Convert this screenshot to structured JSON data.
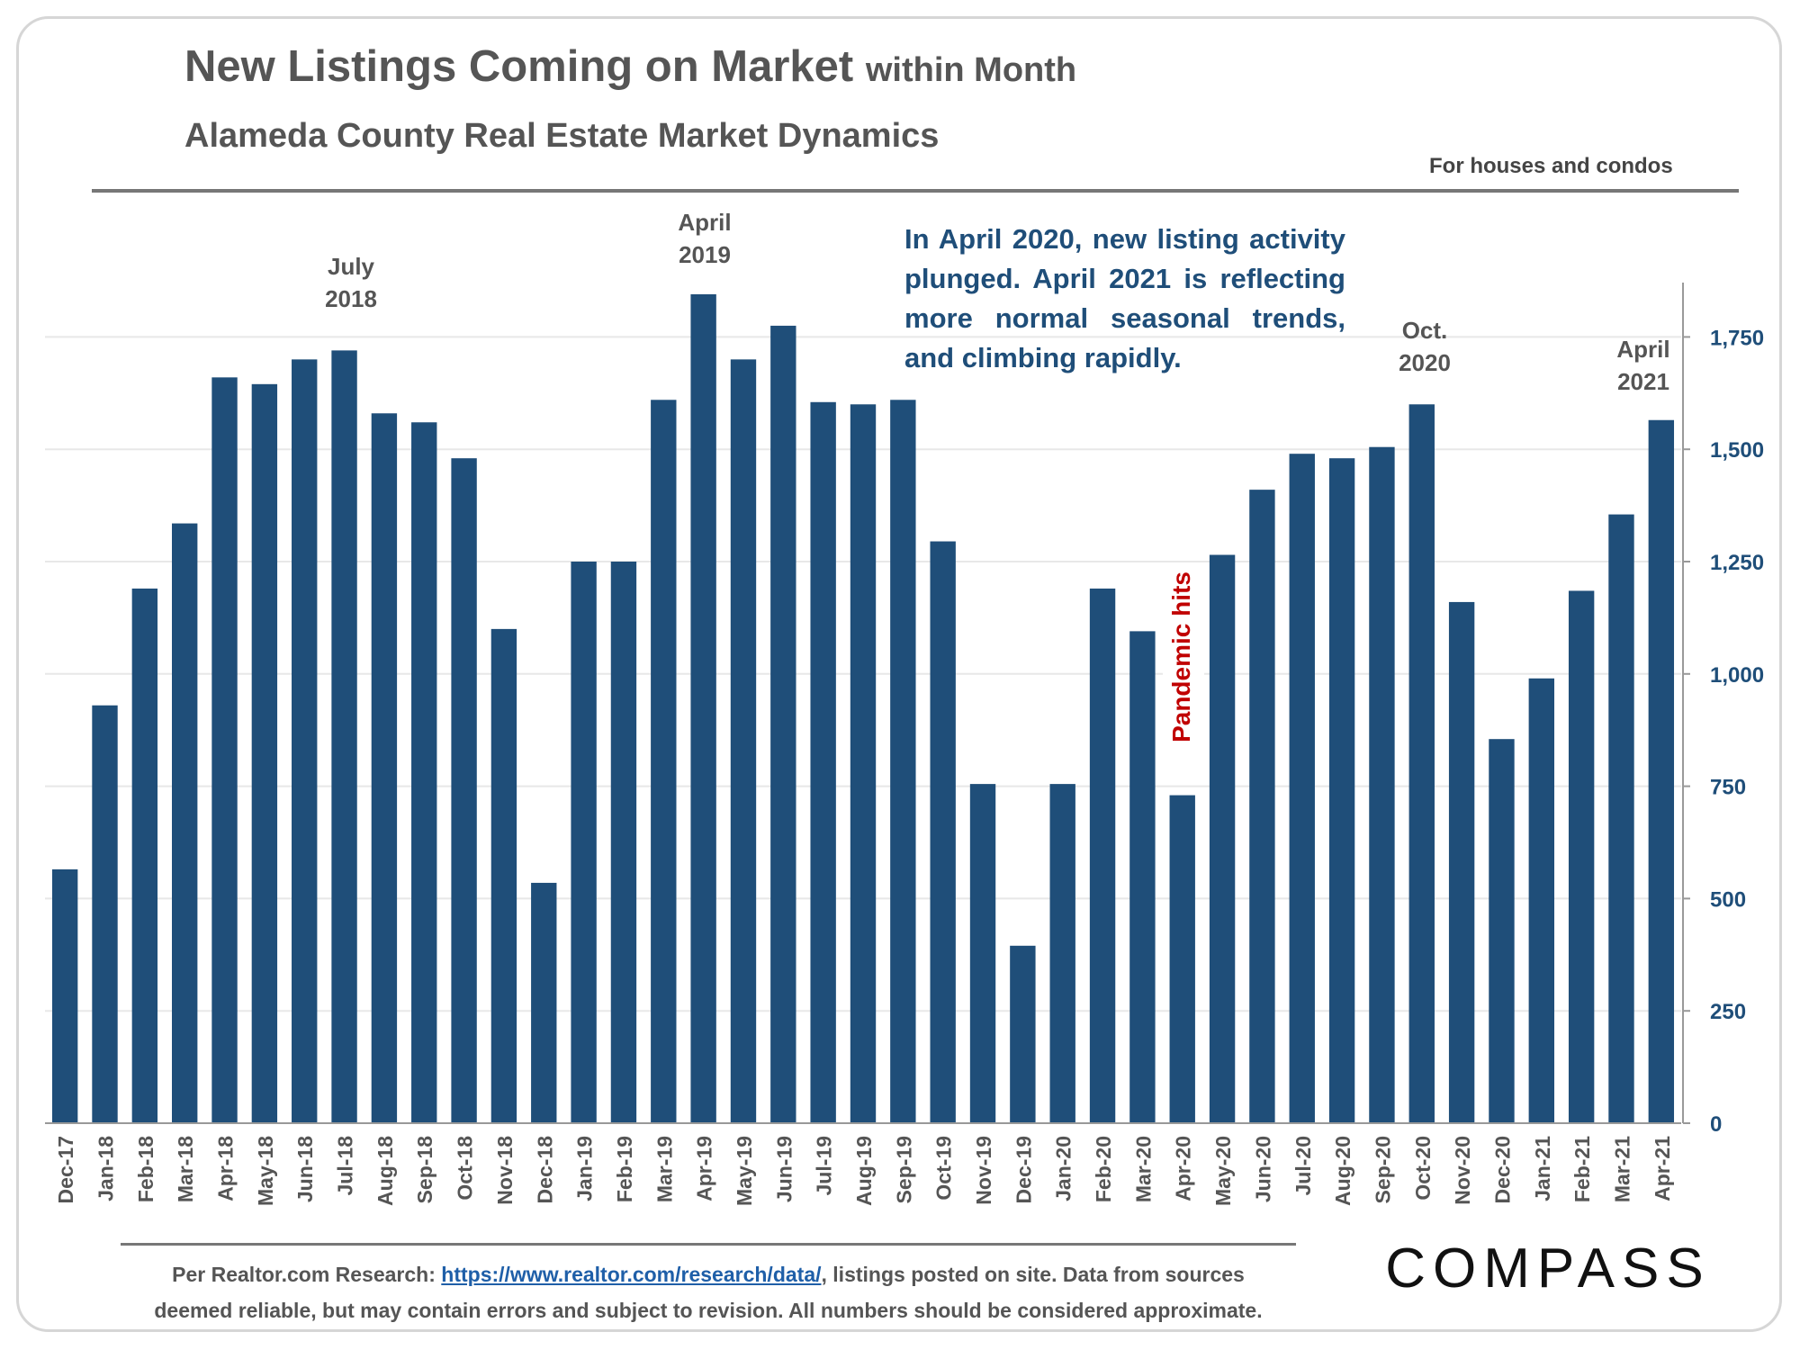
{
  "header": {
    "title_main": "New Listings Coming on Market",
    "title_suffix": "within Month",
    "subtitle": "Alameda County Real Estate Market Dynamics",
    "note": "For houses and condos"
  },
  "annotation": "In April 2020, new listing activity plunged. April 2021 is reflecting more normal seasonal trends, and climbing rapidly.",
  "callouts": {
    "july_2018": [
      "July",
      "2018"
    ],
    "april_2019": [
      "April",
      "2019"
    ],
    "oct_2020": [
      "Oct.",
      "2020"
    ],
    "april_2021": [
      "April",
      "2021"
    ],
    "pandemic": "Pandemic hits"
  },
  "footer": {
    "prefix": "Per Realtor.com Research:",
    "link": "https://www.realtor.com/research/data/",
    "line1_rest": ", listings posted on site. Data from sources",
    "line2": "deemed reliable, but may contain errors and subject to revision. All numbers should be considered approximate."
  },
  "brand": {
    "logo_text": "COMPASS"
  },
  "colors": {
    "bar": "#1f4e79",
    "annotation": "#1f4e79",
    "pandemic": "#c00000",
    "axis_text": "#1f4e79"
  },
  "chart_data": {
    "type": "bar",
    "categories": [
      "Dec-17",
      "Jan-18",
      "Feb-18",
      "Mar-18",
      "Apr-18",
      "May-18",
      "Jun-18",
      "Jul-18",
      "Aug-18",
      "Sep-18",
      "Oct-18",
      "Nov-18",
      "Dec-18",
      "Jan-19",
      "Feb-19",
      "Mar-19",
      "Apr-19",
      "May-19",
      "Jun-19",
      "Jul-19",
      "Aug-19",
      "Sep-19",
      "Oct-19",
      "Nov-19",
      "Dec-19",
      "Jan-20",
      "Feb-20",
      "Mar-20",
      "Apr-20",
      "May-20",
      "Jun-20",
      "Jul-20",
      "Aug-20",
      "Sep-20",
      "Oct-20",
      "Nov-20",
      "Dec-20",
      "Jan-21",
      "Feb-21",
      "Mar-21",
      "Apr-21"
    ],
    "values": [
      565,
      930,
      1190,
      1335,
      1660,
      1645,
      1700,
      1720,
      1580,
      1560,
      1480,
      1100,
      535,
      1250,
      1250,
      1610,
      1845,
      1700,
      1775,
      1605,
      1600,
      1610,
      1295,
      755,
      395,
      755,
      1190,
      1095,
      730,
      1265,
      1410,
      1490,
      1480,
      1505,
      1600,
      1160,
      855,
      990,
      1185,
      1355,
      1565
    ],
    "ylim": [
      0,
      1875
    ],
    "yticks": [
      0,
      250,
      500,
      750,
      1000,
      1250,
      1500,
      1750
    ],
    "ytick_labels": [
      "0",
      "250",
      "500",
      "750",
      "1,000",
      "1,250",
      "1,500",
      "1,750"
    ],
    "y_axis_side": "right",
    "grid": true,
    "legend": "none"
  }
}
